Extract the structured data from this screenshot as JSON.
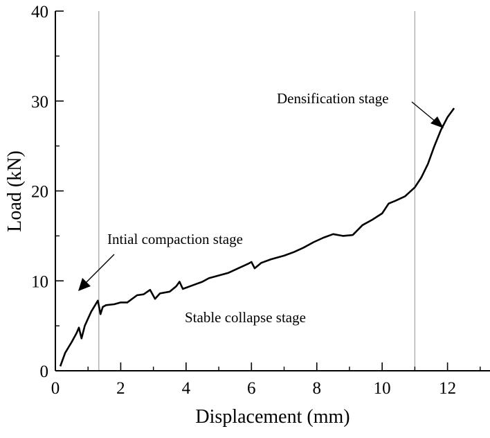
{
  "chart_data": {
    "type": "line",
    "title": "",
    "xlabel": "Displacement (mm)",
    "ylabel": "Load (kN)",
    "xlim": [
      0,
      13.3
    ],
    "ylim": [
      0,
      40
    ],
    "xticks": [
      0,
      2,
      4,
      6,
      8,
      10,
      12
    ],
    "yticks": [
      0,
      10,
      20,
      30,
      40
    ],
    "grid": false,
    "series": [
      {
        "name": "Load-displacement",
        "color": "#000000",
        "x": [
          0.15,
          0.3,
          0.5,
          0.65,
          0.72,
          0.8,
          0.9,
          1.0,
          1.1,
          1.2,
          1.3,
          1.38,
          1.45,
          1.55,
          1.8,
          2.0,
          2.2,
          2.5,
          2.7,
          2.9,
          3.05,
          3.2,
          3.5,
          3.7,
          3.8,
          3.9,
          4.2,
          4.5,
          4.7,
          5.0,
          5.3,
          5.6,
          5.9,
          6.0,
          6.1,
          6.3,
          6.6,
          7.0,
          7.3,
          7.6,
          7.9,
          8.2,
          8.5,
          8.8,
          9.1,
          9.4,
          9.7,
          10.0,
          10.2,
          10.4,
          10.7,
          11.0,
          11.2,
          11.4,
          11.6,
          11.8,
          12.0,
          12.2
        ],
        "y": [
          0.5,
          2.0,
          3.2,
          4.2,
          4.8,
          3.6,
          5.0,
          5.8,
          6.6,
          7.2,
          7.8,
          6.3,
          7.1,
          7.3,
          7.4,
          7.6,
          7.6,
          8.4,
          8.5,
          9.0,
          8.0,
          8.6,
          8.8,
          9.4,
          9.9,
          9.1,
          9.5,
          9.9,
          10.3,
          10.6,
          10.9,
          11.4,
          11.9,
          12.1,
          11.4,
          12.0,
          12.4,
          12.8,
          13.2,
          13.7,
          14.3,
          14.8,
          15.2,
          15.0,
          15.1,
          16.2,
          16.8,
          17.5,
          18.6,
          18.9,
          19.4,
          20.4,
          21.5,
          23.0,
          25.0,
          26.8,
          28.2,
          29.2
        ]
      }
    ],
    "markers": [
      {
        "name": "stage-boundary-1",
        "x": 1.33
      },
      {
        "name": "stage-boundary-2",
        "x": 11.0
      }
    ],
    "annotations": {
      "densification": "Densification stage",
      "compaction": "Intial compaction stage",
      "collapse": "Stable collapse stage"
    }
  }
}
